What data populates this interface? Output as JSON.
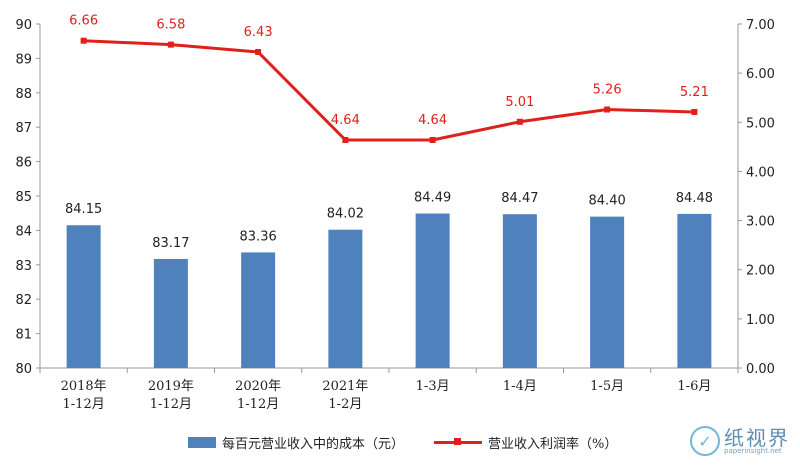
{
  "chart_data": {
    "type": "bar+line",
    "categories": [
      [
        "2018年",
        "1-12月"
      ],
      [
        "2019年",
        "1-12月"
      ],
      [
        "2020年",
        "1-12月"
      ],
      [
        "2021年",
        "1-2月"
      ],
      [
        "1-3月"
      ],
      [
        "1-4月"
      ],
      [
        "1-5月"
      ],
      [
        "1-6月"
      ]
    ],
    "series": [
      {
        "name": "每百元营业收入中的成本（元）",
        "type": "bar",
        "axis": "left",
        "color": "#4f81bd",
        "values": [
          84.15,
          83.17,
          83.36,
          84.02,
          84.49,
          84.47,
          84.4,
          84.48
        ],
        "labels": [
          "84.15",
          "83.17",
          "83.36",
          "84.02",
          "84.49",
          "84.47",
          "84.40",
          "84.48"
        ]
      },
      {
        "name": "营业收入利润率（%）",
        "type": "line",
        "axis": "right",
        "color": "#e0201b",
        "values": [
          6.66,
          6.58,
          6.43,
          4.64,
          4.64,
          5.01,
          5.26,
          5.21
        ],
        "labels": [
          "6.66",
          "6.58",
          "6.43",
          "4.64",
          "4.64",
          "5.01",
          "5.26",
          "5.21"
        ]
      }
    ],
    "y_left": {
      "min": 80,
      "max": 90,
      "ticks": [
        "80",
        "81",
        "82",
        "83",
        "84",
        "85",
        "86",
        "87",
        "88",
        "89",
        "90"
      ]
    },
    "y_right": {
      "min": 0,
      "max": 7,
      "ticks": [
        "0.00",
        "1.00",
        "2.00",
        "3.00",
        "4.00",
        "5.00",
        "6.00",
        "7.00"
      ]
    },
    "grid": false,
    "legend": "bottom"
  },
  "watermark": {
    "logo_icon": "leaf-logo-icon",
    "name": "纸视界",
    "url": "paperinsight.net"
  }
}
